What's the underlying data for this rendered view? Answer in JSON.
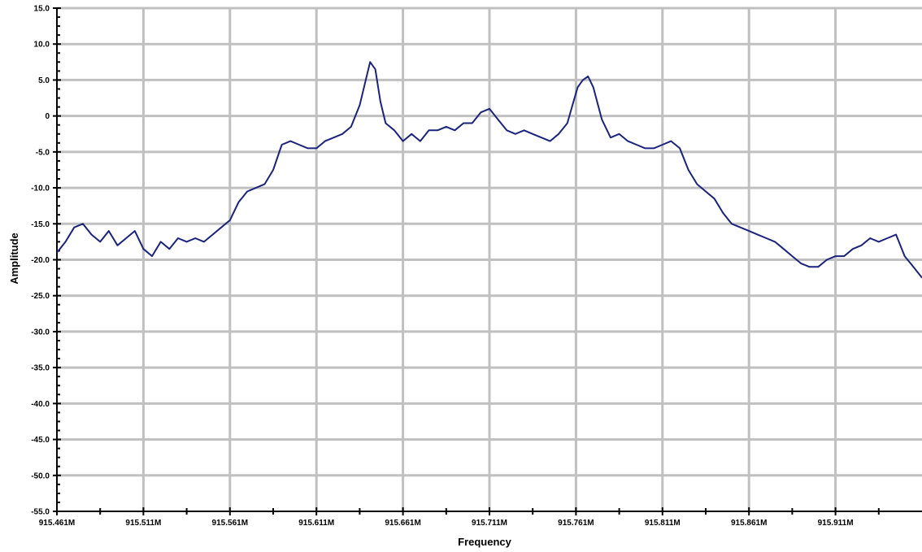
{
  "chart_data": {
    "type": "line",
    "title": "",
    "xlabel": "Frequency",
    "ylabel": "Amplitude",
    "xlim": [
      915.461,
      915.961
    ],
    "ylim": [
      -55.0,
      15.0
    ],
    "grid": true,
    "legend": "none",
    "colors": {
      "series": "#1a237e",
      "grid": "#c0c0c0",
      "axis": "#000000"
    },
    "x_ticks": [
      {
        "value": 915.461,
        "label": "915.461M"
      },
      {
        "value": 915.511,
        "label": "915.511M"
      },
      {
        "value": 915.561,
        "label": "915.561M"
      },
      {
        "value": 915.611,
        "label": "915.611M"
      },
      {
        "value": 915.661,
        "label": "915.661M"
      },
      {
        "value": 915.711,
        "label": "915.711M"
      },
      {
        "value": 915.761,
        "label": "915.761M"
      },
      {
        "value": 915.811,
        "label": "915.811M"
      },
      {
        "value": 915.861,
        "label": "915.861M"
      },
      {
        "value": 915.911,
        "label": "915.911M"
      }
    ],
    "y_ticks": [
      {
        "value": 15,
        "label": "15.0"
      },
      {
        "value": 10,
        "label": "10.0"
      },
      {
        "value": 5,
        "label": "5.0"
      },
      {
        "value": 0,
        "label": "0"
      },
      {
        "value": -5,
        "label": "-5.0"
      },
      {
        "value": -10,
        "label": "-10.0"
      },
      {
        "value": -15,
        "label": "-15.0"
      },
      {
        "value": -20,
        "label": "-20.0"
      },
      {
        "value": -25,
        "label": "-25.0"
      },
      {
        "value": -30,
        "label": "-30.0"
      },
      {
        "value": -35,
        "label": "-35.0"
      },
      {
        "value": -40,
        "label": "-40.0"
      },
      {
        "value": -45,
        "label": "-45.0"
      },
      {
        "value": -50,
        "label": "-50.0"
      },
      {
        "value": -55,
        "label": "-55.0"
      }
    ],
    "series": [
      {
        "x": [
          915.461,
          915.466,
          915.471,
          915.476,
          915.481,
          915.486,
          915.491,
          915.496,
          915.501,
          915.506,
          915.511,
          915.516,
          915.521,
          915.526,
          915.531,
          915.536,
          915.541,
          915.546,
          915.551,
          915.556,
          915.561,
          915.566,
          915.571,
          915.576,
          915.581,
          915.586,
          915.591,
          915.596,
          915.601,
          915.606,
          915.611,
          915.616,
          915.621,
          915.626,
          915.631,
          915.636,
          915.639,
          915.642,
          915.645,
          915.648,
          915.651,
          915.656,
          915.661,
          915.666,
          915.671,
          915.676,
          915.681,
          915.686,
          915.691,
          915.696,
          915.701,
          915.706,
          915.711,
          915.716,
          915.721,
          915.726,
          915.731,
          915.736,
          915.741,
          915.746,
          915.751,
          915.756,
          915.759,
          915.762,
          915.765,
          915.768,
          915.771,
          915.776,
          915.781,
          915.786,
          915.791,
          915.796,
          915.801,
          915.806,
          915.811,
          915.816,
          915.821,
          915.826,
          915.831,
          915.836,
          915.841,
          915.846,
          915.851,
          915.856,
          915.861,
          915.866,
          915.871,
          915.876,
          915.881,
          915.886,
          915.891,
          915.896,
          915.901,
          915.906,
          915.911,
          915.916,
          915.921,
          915.926,
          915.931,
          915.936,
          915.941,
          915.946,
          915.951,
          915.956,
          915.961
        ],
        "y": [
          -19.0,
          -17.5,
          -15.5,
          -15.0,
          -16.5,
          -17.5,
          -16.0,
          -18.0,
          -17.0,
          -16.0,
          -18.5,
          -19.5,
          -17.5,
          -18.5,
          -17.0,
          -17.5,
          -17.0,
          -17.5,
          -16.5,
          -15.5,
          -14.5,
          -12.0,
          -10.5,
          -10.0,
          -9.5,
          -7.5,
          -4.0,
          -3.5,
          -4.0,
          -4.5,
          -4.5,
          -3.5,
          -3.0,
          -2.5,
          -1.5,
          1.5,
          4.5,
          7.5,
          6.5,
          2.0,
          -1.0,
          -2.0,
          -3.5,
          -2.5,
          -3.5,
          -2.0,
          -2.0,
          -1.5,
          -2.0,
          -1.0,
          -1.0,
          0.5,
          1.0,
          -0.5,
          -2.0,
          -2.5,
          -2.0,
          -2.5,
          -3.0,
          -3.5,
          -2.5,
          -1.0,
          1.5,
          4.0,
          5.0,
          5.5,
          4.0,
          -0.5,
          -3.0,
          -2.5,
          -3.5,
          -4.0,
          -4.5,
          -4.5,
          -4.0,
          -3.5,
          -4.5,
          -7.5,
          -9.5,
          -10.5,
          -11.5,
          -13.5,
          -15.0,
          -15.5,
          -16.0,
          -16.5,
          -17.0,
          -17.5,
          -18.5,
          -19.5,
          -20.5,
          -21.0,
          -21.0,
          -20.0,
          -19.5,
          -19.5,
          -18.5,
          -18.0,
          -17.0,
          -17.5,
          -17.0,
          -16.5,
          -19.5,
          -21.0,
          -22.5
        ]
      }
    ]
  }
}
